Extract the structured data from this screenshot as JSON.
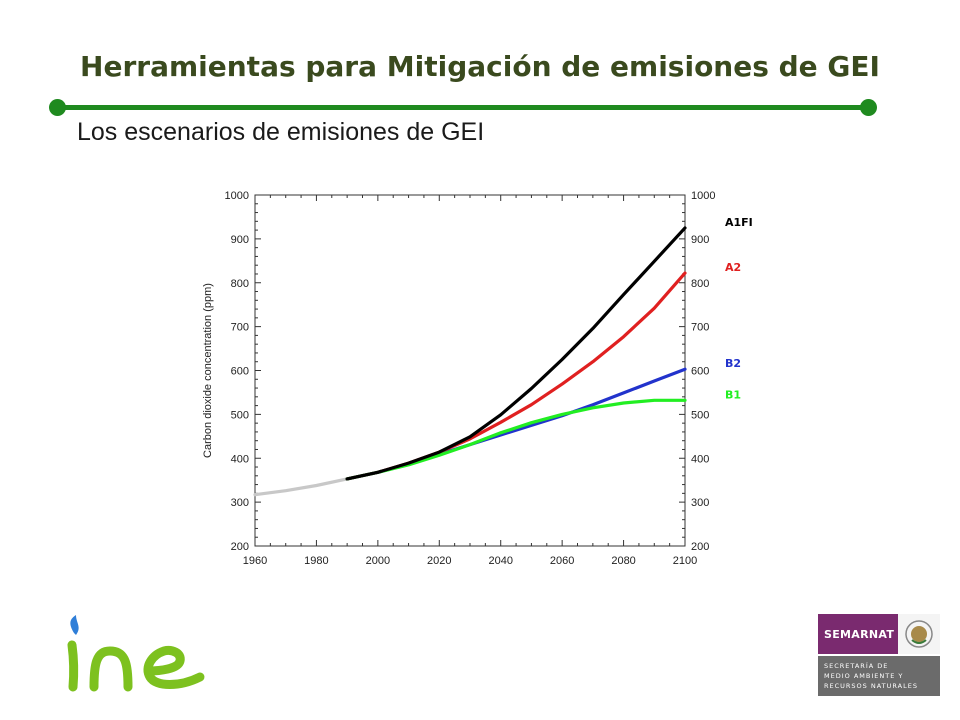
{
  "slide": {
    "title": "Herramientas para Mitigación de emisiones de GEI",
    "subtitle": "Los escenarios de emisiones de GEI"
  },
  "colors": {
    "title": "#3a4a1e",
    "rule": "#1f8a1f",
    "historical": "#c8c8c8",
    "A1FI": "#000000",
    "A2": "#e02020",
    "B2": "#2233cc",
    "B1": "#22ee22"
  },
  "chart_data": {
    "type": "line",
    "ylabel": "Carbon dioxide concentration (ppm)",
    "xlabel": "",
    "xlim": [
      1960,
      2100
    ],
    "ylim": [
      200,
      1000
    ],
    "x_ticks": [
      "1960",
      "1980",
      "2000",
      "2020",
      "2040",
      "2060",
      "2080",
      "2100"
    ],
    "y_ticks": [
      "200",
      "300",
      "400",
      "500",
      "600",
      "700",
      "800",
      "900",
      "1000"
    ],
    "series": [
      {
        "name": "",
        "color_key": "historical",
        "x": [
          1960,
          1970,
          1980,
          1990
        ],
        "y": [
          317,
          326,
          338,
          353
        ]
      },
      {
        "name": "A1FI",
        "color_key": "A1FI",
        "x": [
          1990,
          2000,
          2010,
          2020,
          2030,
          2040,
          2050,
          2060,
          2070,
          2080,
          2090,
          2100
        ],
        "y": [
          353,
          368,
          389,
          414,
          449,
          499,
          559,
          625,
          696,
          773,
          849,
          925
        ]
      },
      {
        "name": "A2",
        "color_key": "A2",
        "x": [
          1990,
          2000,
          2010,
          2020,
          2030,
          2040,
          2050,
          2060,
          2070,
          2080,
          2090,
          2100
        ],
        "y": [
          353,
          368,
          389,
          414,
          444,
          482,
          522,
          569,
          620,
          677,
          742,
          822
        ]
      },
      {
        "name": "B2",
        "color_key": "B2",
        "x": [
          1990,
          2000,
          2010,
          2020,
          2030,
          2040,
          2050,
          2060,
          2070,
          2080,
          2090,
          2100
        ],
        "y": [
          353,
          368,
          387,
          409,
          431,
          453,
          475,
          497,
          522,
          549,
          576,
          603
        ]
      },
      {
        "name": "B1",
        "color_key": "B1",
        "x": [
          1990,
          2000,
          2010,
          2020,
          2030,
          2040,
          2050,
          2060,
          2070,
          2080,
          2090,
          2100
        ],
        "y": [
          353,
          368,
          385,
          407,
          431,
          458,
          481,
          500,
          515,
          526,
          532,
          532
        ]
      }
    ],
    "grid": false,
    "legend": "right-end labels"
  },
  "logos": {
    "semarnat_name": "SEMARNAT",
    "semarnat_lines": [
      "SECRETARÍA DE",
      "MEDIO AMBIENTE Y",
      "RECURSOS NATURALES"
    ],
    "ine_text": "ine"
  }
}
